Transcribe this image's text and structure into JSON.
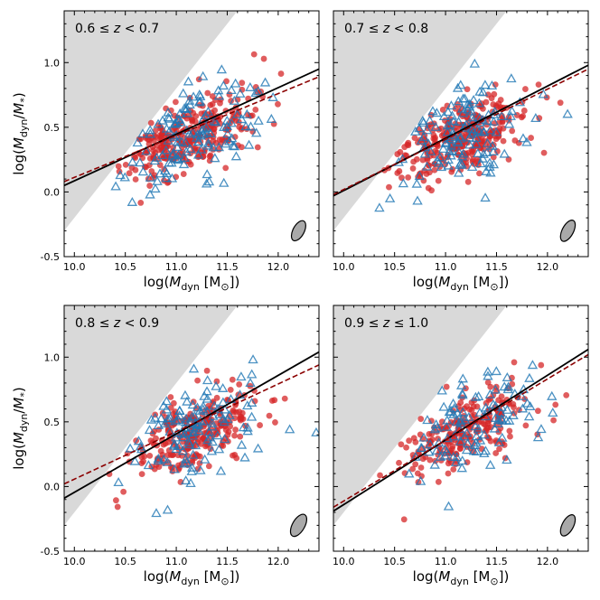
{
  "chart_data": [
    {
      "type": "scatter",
      "title": "0.6 ≤ z < 0.7",
      "panel_label": {
        "a": "0.6 ≤ ",
        "z": "z",
        "b": " < 0.7"
      },
      "xlabel": {
        "pre": "log(",
        "m": "M",
        "sub": "dyn",
        "post": " [M",
        "sun": "⊙",
        "end": "])"
      },
      "ylabel": {
        "pre": "log(",
        "m": "M",
        "sub": "dyn",
        "slash": "/",
        "m2": "M",
        "sub2": "*",
        "end": ")"
      },
      "xlim": [
        9.9,
        12.4
      ],
      "ylim": [
        -0.5,
        1.4
      ],
      "xticks": [
        "10.0",
        "10.5",
        "11.0",
        "11.5",
        "12.0"
      ],
      "yticks": [
        "-0.5",
        "0.0",
        "0.5",
        "1.0"
      ],
      "fits": [
        {
          "name": "solid fit",
          "x": [
            9.9,
            12.4
          ],
          "y": [
            0.05,
            0.95
          ]
        },
        {
          "name": "dashed fit",
          "x": [
            9.9,
            12.4
          ],
          "y": [
            0.08,
            0.89
          ]
        }
      ],
      "excluded_region": {
        "x0": 9.9,
        "y0": -0.3,
        "slope": 1.0
      },
      "series": [
        {
          "name": "red circles",
          "center": [
            11.1,
            0.42
          ],
          "spread": [
            0.32,
            0.16
          ],
          "corr": 0.55,
          "count": 300,
          "seed": 11
        },
        {
          "name": "blue triangles",
          "center": [
            11.15,
            0.45
          ],
          "spread": [
            0.34,
            0.2
          ],
          "corr": 0.5,
          "count": 140,
          "seed": 12
        }
      ],
      "error_ellipse": {
        "x": 12.2,
        "y": -0.3,
        "rx": 0.055,
        "ry": 0.085,
        "angle": 28
      }
    },
    {
      "type": "scatter",
      "title": "0.7 ≤ z < 0.8",
      "panel_label": {
        "a": "0.7 ≤ ",
        "z": "z",
        "b": " < 0.8"
      },
      "xlabel": {
        "pre": "log(",
        "m": "M",
        "sub": "dyn",
        "post": " [M",
        "sun": "⊙",
        "end": "])"
      },
      "ylabel": null,
      "xlim": [
        9.9,
        12.4
      ],
      "ylim": [
        -0.5,
        1.4
      ],
      "xticks": [
        "10.0",
        "10.5",
        "11.0",
        "11.5",
        "12.0"
      ],
      "yticks": [],
      "fits": [
        {
          "name": "solid fit",
          "x": [
            9.9,
            12.4
          ],
          "y": [
            -0.03,
            0.98
          ]
        },
        {
          "name": "dashed fit",
          "x": [
            9.9,
            12.4
          ],
          "y": [
            -0.02,
            0.95
          ]
        }
      ],
      "excluded_region": {
        "x0": 9.9,
        "y0": -0.3,
        "slope": 1.0
      },
      "series": [
        {
          "name": "red circles",
          "center": [
            11.15,
            0.42
          ],
          "spread": [
            0.33,
            0.17
          ],
          "corr": 0.55,
          "count": 300,
          "seed": 21
        },
        {
          "name": "blue triangles",
          "center": [
            11.1,
            0.45
          ],
          "spread": [
            0.35,
            0.2
          ],
          "corr": 0.5,
          "count": 140,
          "seed": 22
        }
      ],
      "error_ellipse": {
        "x": 12.2,
        "y": -0.3,
        "rx": 0.055,
        "ry": 0.09,
        "angle": 28
      }
    },
    {
      "type": "scatter",
      "title": "0.8 ≤ z < 0.9",
      "panel_label": {
        "a": "0.8 ≤ ",
        "z": "z",
        "b": " < 0.9"
      },
      "xlabel": {
        "pre": "log(",
        "m": "M",
        "sub": "dyn",
        "post": " [M",
        "sun": "⊙",
        "end": "])"
      },
      "ylabel": {
        "pre": "log(",
        "m": "M",
        "sub": "dyn",
        "slash": "/",
        "m2": "M",
        "sub2": "*",
        "end": ")"
      },
      "xlim": [
        9.9,
        12.4
      ],
      "ylim": [
        -0.5,
        1.4
      ],
      "xticks": [
        "10.0",
        "10.5",
        "11.0",
        "11.5",
        "12.0"
      ],
      "yticks": [
        "-0.5",
        "0.0",
        "0.5",
        "1.0"
      ],
      "fits": [
        {
          "name": "solid fit",
          "x": [
            9.9,
            12.4
          ],
          "y": [
            -0.09,
            1.04
          ]
        },
        {
          "name": "dashed fit",
          "x": [
            9.9,
            12.4
          ],
          "y": [
            0.02,
            0.94
          ]
        }
      ],
      "excluded_region": {
        "x0": 9.9,
        "y0": -0.3,
        "slope": 1.0
      },
      "series": [
        {
          "name": "red circles",
          "center": [
            11.2,
            0.42
          ],
          "spread": [
            0.3,
            0.17
          ],
          "corr": 0.55,
          "count": 260,
          "seed": 31
        },
        {
          "name": "blue triangles",
          "center": [
            11.15,
            0.45
          ],
          "spread": [
            0.33,
            0.22
          ],
          "corr": 0.5,
          "count": 130,
          "seed": 32
        }
      ],
      "error_ellipse": {
        "x": 12.2,
        "y": -0.3,
        "rx": 0.06,
        "ry": 0.095,
        "angle": 30
      }
    },
    {
      "type": "scatter",
      "title": "0.9 ≤ z ≤ 1.0",
      "panel_label": {
        "a": "0.9 ≤ ",
        "z": "z",
        "b": " ≤ 1.0"
      },
      "xlabel": {
        "pre": "log(",
        "m": "M",
        "sub": "dyn",
        "post": " [M",
        "sun": "⊙",
        "end": "])"
      },
      "ylabel": null,
      "xlim": [
        9.9,
        12.4
      ],
      "ylim": [
        -0.5,
        1.4
      ],
      "xticks": [
        "10.0",
        "10.5",
        "11.0",
        "11.5",
        "12.0"
      ],
      "yticks": [],
      "fits": [
        {
          "name": "solid fit",
          "x": [
            9.9,
            12.4
          ],
          "y": [
            -0.19,
            1.06
          ]
        },
        {
          "name": "dashed fit",
          "x": [
            9.9,
            12.4
          ],
          "y": [
            -0.16,
            1.02
          ]
        }
      ],
      "excluded_region": {
        "x0": 9.9,
        "y0": -0.3,
        "slope": 1.0
      },
      "series": [
        {
          "name": "red circles",
          "center": [
            11.2,
            0.45
          ],
          "spread": [
            0.3,
            0.18
          ],
          "corr": 0.55,
          "count": 230,
          "seed": 41
        },
        {
          "name": "blue triangles",
          "center": [
            11.25,
            0.48
          ],
          "spread": [
            0.33,
            0.2
          ],
          "corr": 0.5,
          "count": 110,
          "seed": 42
        }
      ],
      "error_ellipse": {
        "x": 12.2,
        "y": -0.3,
        "rx": 0.055,
        "ry": 0.09,
        "angle": 28
      }
    }
  ],
  "colors": {
    "red": "#d62728",
    "blue": "#1f77b4",
    "shade": "#d9d9d9",
    "dashed_fit": "#8b0000",
    "solid_fit": "#000000",
    "ellipse_fill": "#a9a9a9"
  }
}
